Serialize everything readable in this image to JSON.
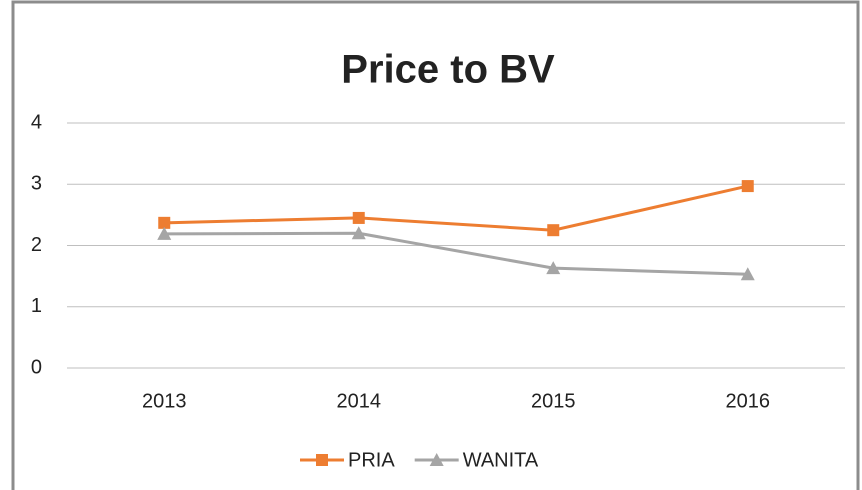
{
  "chart_data": {
    "type": "line",
    "title": "Price to BV",
    "categories": [
      "2013",
      "2014",
      "2015",
      "2016"
    ],
    "series": [
      {
        "name": "PRIA",
        "color": "#ed7d31",
        "marker": "square",
        "values": [
          2.37,
          2.45,
          2.25,
          2.97
        ]
      },
      {
        "name": "WANITA",
        "color": "#a5a5a5",
        "marker": "triangle",
        "values": [
          2.19,
          2.2,
          1.63,
          1.53
        ]
      }
    ],
    "ylim": [
      0,
      4
    ],
    "yticks": [
      0,
      1,
      2,
      3,
      4
    ],
    "grid": true,
    "legend": "bottom"
  }
}
